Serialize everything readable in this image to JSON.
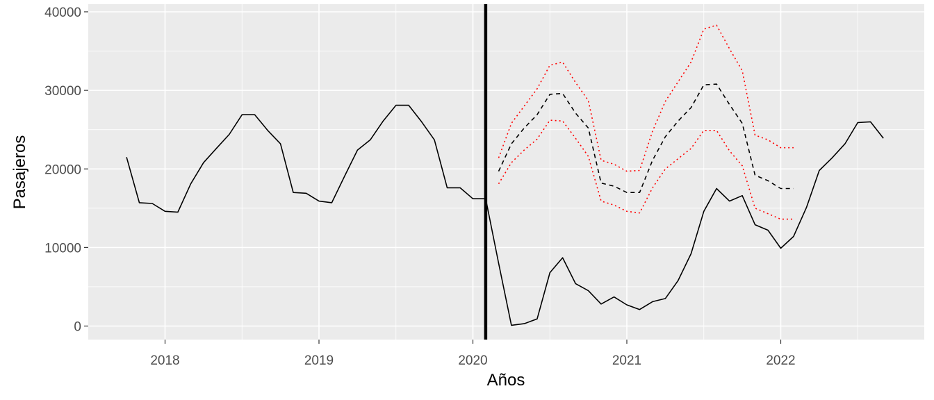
{
  "chart_data": {
    "type": "line",
    "title": "",
    "xlabel": "Años",
    "ylabel": "Pasajeros",
    "xlim": [
      2017.5,
      2022.83
    ],
    "ylim": [
      -1500,
      40000
    ],
    "x_ticks": [
      2018,
      2019,
      2020,
      2021,
      2022
    ],
    "x_tick_labels": [
      "2018",
      "2019",
      "2020",
      "2021",
      "2022"
    ],
    "y_ticks": [
      0,
      10000,
      20000,
      30000,
      40000
    ],
    "y_tick_labels": [
      "0",
      "10000",
      "20000",
      "30000",
      "40000"
    ],
    "grid": true,
    "background": "#ebebeb",
    "vline": {
      "x": 2020.083,
      "color": "#000000"
    },
    "series": [
      {
        "style": "solid",
        "color": "#000000",
        "x": [
          2017.75,
          2017.833,
          2017.917,
          2018.0,
          2018.083,
          2018.167,
          2018.25,
          2018.333,
          2018.417,
          2018.5,
          2018.583,
          2018.667,
          2018.75,
          2018.833,
          2018.917,
          2019.0,
          2019.083,
          2019.167,
          2019.25,
          2019.333,
          2019.417,
          2019.5,
          2019.583,
          2019.667,
          2019.75,
          2019.833,
          2019.917,
          2020.0,
          2020.083,
          2020.167,
          2020.25,
          2020.333,
          2020.417,
          2020.5,
          2020.583,
          2020.667,
          2020.75,
          2020.833,
          2020.917,
          2021.0,
          2021.083,
          2021.167,
          2021.25,
          2021.333,
          2021.417,
          2021.5,
          2021.583,
          2021.667,
          2021.75,
          2021.833,
          2021.917,
          2022.0,
          2022.083,
          2022.167,
          2022.25,
          2022.333,
          2022.417,
          2022.5,
          2022.583,
          2022.667
        ],
        "y": [
          21500,
          15700,
          15600,
          14600,
          14500,
          18100,
          20800,
          22600,
          24400,
          26900,
          26900,
          24900,
          23200,
          17000,
          16900,
          15900,
          15700,
          19100,
          22400,
          23700,
          26100,
          28100,
          28100,
          26000,
          23700,
          17600,
          17600,
          16200,
          16200,
          8000,
          100,
          300,
          900,
          6800,
          8700,
          5400,
          4500,
          2800,
          3700,
          2700,
          2100,
          3100,
          3500,
          5800,
          9200,
          14600,
          17500,
          15900,
          16600,
          12900,
          12200,
          9900,
          11400,
          15100,
          19800,
          21400,
          23200,
          25900,
          26000,
          23900
        ]
      },
      {
        "style": "dashed",
        "color": "#000000",
        "x": [
          2020.167,
          2020.25,
          2020.333,
          2020.417,
          2020.5,
          2020.583,
          2020.667,
          2020.75,
          2020.833,
          2020.917,
          2021.0,
          2021.083,
          2021.167,
          2021.25,
          2021.333,
          2021.417,
          2021.5,
          2021.583,
          2021.667,
          2021.75,
          2021.833,
          2021.917,
          2022.0,
          2022.083
        ],
        "y": [
          19700,
          23200,
          25200,
          26900,
          29500,
          29600,
          27100,
          25200,
          18200,
          17800,
          17000,
          17000,
          21100,
          24100,
          26100,
          27800,
          30700,
          30800,
          28200,
          25800,
          19200,
          18500,
          17500,
          17500
        ]
      },
      {
        "style": "dotted",
        "color": "#ff0000",
        "x": [
          2020.167,
          2020.25,
          2020.333,
          2020.417,
          2020.5,
          2020.583,
          2020.667,
          2020.75,
          2020.833,
          2020.917,
          2021.0,
          2021.083,
          2021.167,
          2021.25,
          2021.333,
          2021.417,
          2021.5,
          2021.583,
          2021.667,
          2021.75,
          2021.833,
          2021.917,
          2022.0,
          2022.083
        ],
        "y": [
          21400,
          25800,
          28000,
          30200,
          33200,
          33600,
          31000,
          28700,
          21100,
          20600,
          19700,
          19800,
          24800,
          28600,
          31100,
          33600,
          37800,
          38300,
          35300,
          32500,
          24300,
          23700,
          22700,
          22700
        ]
      },
      {
        "style": "dotted",
        "color": "#ff0000",
        "x": [
          2020.167,
          2020.25,
          2020.333,
          2020.417,
          2020.5,
          2020.583,
          2020.667,
          2020.75,
          2020.833,
          2020.917,
          2021.0,
          2021.083,
          2021.167,
          2021.25,
          2021.333,
          2021.417,
          2021.5,
          2021.583,
          2021.667,
          2021.75,
          2021.833,
          2021.917,
          2022.0,
          2022.083
        ],
        "y": [
          18100,
          20800,
          22400,
          23800,
          26200,
          26100,
          23900,
          21600,
          15900,
          15400,
          14600,
          14400,
          17600,
          20000,
          21300,
          22600,
          24900,
          24900,
          22300,
          20400,
          15000,
          14300,
          13600,
          13600
        ]
      }
    ]
  }
}
